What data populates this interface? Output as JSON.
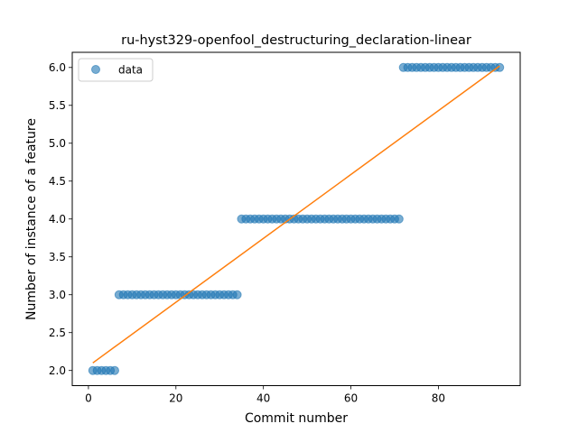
{
  "chart_data": {
    "type": "scatter",
    "title": "ru-hyst329-openfool_destructuring_declaration-linear",
    "xlabel": "Commit number",
    "ylabel": "Number of instance of a feature",
    "xlim": [
      -3.7,
      98.7
    ],
    "ylim": [
      1.8,
      6.2
    ],
    "xticks": [
      0,
      20,
      40,
      60,
      80
    ],
    "yticks": [
      2.0,
      2.5,
      3.0,
      3.5,
      4.0,
      4.5,
      5.0,
      5.5,
      6.0
    ],
    "legend": {
      "placement": "upper-left",
      "entries": [
        "data"
      ]
    },
    "grid": false,
    "colors": {
      "data": "#1f77b4",
      "fit": "#ff7f0e"
    },
    "series": [
      {
        "name": "data",
        "kind": "scatter",
        "segments": [
          {
            "x_from": 1,
            "x_to": 6,
            "y": 2.0
          },
          {
            "x_from": 7,
            "x_to": 34,
            "y": 3.0
          },
          {
            "x_from": 35,
            "x_to": 71,
            "y": 4.0
          },
          {
            "x_from": 72,
            "x_to": 94,
            "y": 6.0
          }
        ]
      },
      {
        "kind": "line",
        "x": [
          1,
          94
        ],
        "y": [
          2.1,
          6.02
        ]
      }
    ]
  }
}
